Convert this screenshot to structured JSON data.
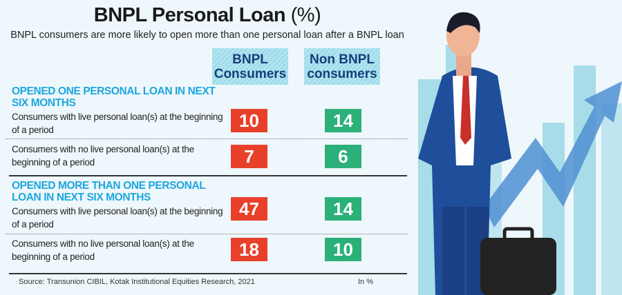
{
  "title": "BNPL Personal Loan",
  "title_unit": "(%)",
  "subtitle": "BNPL consumers are more likely to open more than one personal loan after a BNPL loan",
  "chart_data": {
    "type": "table",
    "columns": [
      "BNPL Consumers",
      "Non BNPL consumers"
    ],
    "column_colors": [
      "#e8402a",
      "#2bb07a"
    ],
    "sections": [
      {
        "title": "OPENED ONE PERSONAL LOAN IN NEXT SIX MONTHS",
        "rows": [
          {
            "label": "Consumers with live personal loan(s) at the beginning of a period",
            "values": [
              10,
              14
            ]
          },
          {
            "label": "Consumers with no live personal loan(s) at the beginning of a period",
            "values": [
              7,
              6
            ]
          }
        ]
      },
      {
        "title": "OPENED MORE THAN ONE PERSONAL LOAN IN NEXT SIX MONTHS",
        "rows": [
          {
            "label": "Consumers with live personal loan(s) at the beginning of a period",
            "values": [
              47,
              14
            ]
          },
          {
            "label": "Consumers with no live personal loan(s) at the beginning of a period",
            "values": [
              18,
              10
            ]
          }
        ]
      }
    ]
  },
  "headers": {
    "bnpl_l1": "BNPL",
    "bnpl_l2": "Consumers",
    "non_l1": "Non BNPL",
    "non_l2": "consumers"
  },
  "source": "Source: Transunion CIBIL, Kotak Institutional Equities Research, 2021",
  "unit_note": "In %",
  "illustration": "businessman-with-rising-chart-and-briefcase"
}
